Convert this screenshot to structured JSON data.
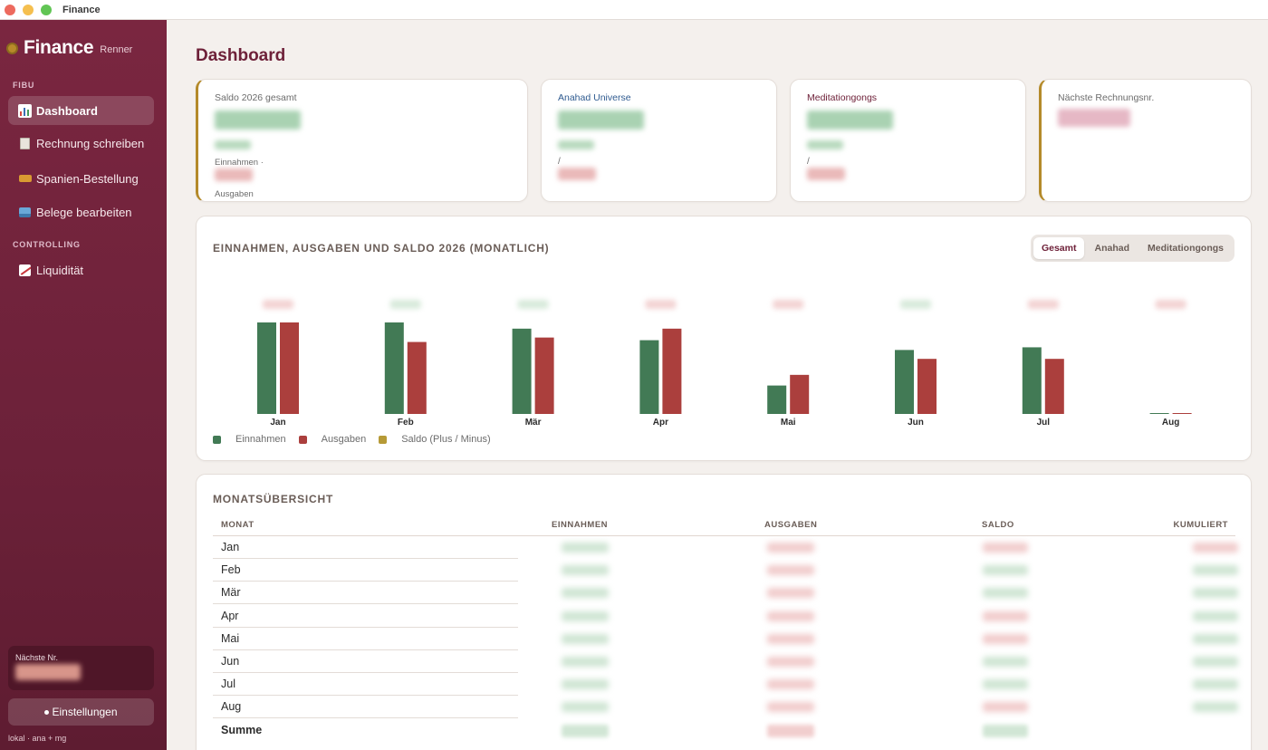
{
  "window": {
    "title": "Finance"
  },
  "sidebar": {
    "brand": "Finance",
    "brand_sub": "Renner",
    "sections": [
      {
        "label": "FIBU",
        "items": [
          {
            "label": "Dashboard",
            "icon": "bar-chart-icon",
            "active": true
          },
          {
            "label": "Rechnung schreiben",
            "icon": "document-icon",
            "active": false
          },
          {
            "label": "Spanien-Bestellung",
            "icon": "ticket-icon",
            "active": false
          },
          {
            "label": "Belege bearbeiten",
            "icon": "inbox-tray-icon",
            "active": false
          }
        ]
      },
      {
        "label": "CONTROLLING",
        "items": [
          {
            "label": "Liquidität",
            "icon": "trend-chart-icon",
            "active": false
          }
        ]
      }
    ],
    "next_number_label": "Nächste Nr.",
    "settings_label": "Einstellungen",
    "footer": "lokal · ana + mg"
  },
  "page": {
    "title": "Dashboard"
  },
  "kpis": [
    {
      "title": "Saldo 2026 gesamt",
      "line1": "Einnahmen ·",
      "line2": "Ausgaben"
    },
    {
      "title": "Anahad Universe",
      "slash": "/"
    },
    {
      "title": "Meditationgongs",
      "slash": "/"
    },
    {
      "title": "Nächste Rechnungsnr."
    }
  ],
  "chart": {
    "title": "EINNAHMEN, AUSGABEN UND SALDO 2026 (MONATLICH)",
    "filters": [
      {
        "label": "Gesamt",
        "active": true
      },
      {
        "label": "Anahad",
        "active": false
      },
      {
        "label": "Meditationgongs",
        "active": false
      }
    ],
    "legend": [
      "Einnahmen",
      "Ausgaben",
      "Saldo (Plus / Minus)"
    ],
    "colors": {
      "income": "#427a55",
      "expense": "#ab3f3d",
      "saldo": "#b69a36"
    }
  },
  "chart_data": {
    "type": "bar",
    "categories": [
      "Jan",
      "Feb",
      "Mär",
      "Apr",
      "Mai",
      "Jun",
      "Jul",
      "Aug"
    ],
    "series": [
      {
        "name": "Einnahmen",
        "values": [
          103,
          103,
          96,
          83,
          32,
          72,
          75,
          1
        ]
      },
      {
        "name": "Ausgaben",
        "values": [
          103,
          81,
          86,
          96,
          44,
          62,
          62,
          1
        ]
      }
    ],
    "ylim": [
      0,
      105
    ],
    "legend": "bottom-left"
  },
  "table": {
    "title": "MONATSÜBERSICHT",
    "headers": [
      "MONAT",
      "EINNAHMEN",
      "AUSGABEN",
      "SALDO",
      "KUMULIERT"
    ],
    "rows": [
      "Jan",
      "Feb",
      "Mär",
      "Apr",
      "Mai",
      "Jun",
      "Jul",
      "Aug"
    ],
    "sum_label": "Summe"
  }
}
